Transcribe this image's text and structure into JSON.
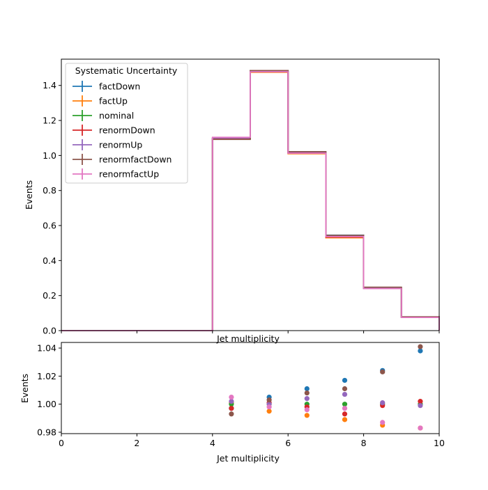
{
  "chart_data": [
    {
      "type": "line",
      "drawstyle": "steps",
      "xlabel": "Jet multiplicity",
      "ylabel": "Events",
      "xlim": [
        0,
        10
      ],
      "ylim": [
        0,
        1.55
      ],
      "xticks": [
        0,
        2,
        4,
        6,
        8,
        10
      ],
      "yticks": [
        "0.0",
        "0.2",
        "0.4",
        "0.6",
        "0.8",
        "1.0",
        "1.2",
        "1.4"
      ],
      "grid": false,
      "legend": {
        "title": "Systematic Uncertainty",
        "placement": "top-left"
      },
      "bin_edges": [
        0,
        1,
        2,
        3,
        4,
        5,
        6,
        7,
        8,
        9,
        10
      ],
      "series": [
        {
          "name": "factDown",
          "color": "#1f77b4",
          "values": [
            0,
            0,
            0,
            0,
            1.095,
            1.485,
            1.02,
            0.545,
            0.245,
            0.078
          ]
        },
        {
          "name": "factUp",
          "color": "#ff7f0e",
          "values": [
            0,
            0,
            0,
            0,
            1.1,
            1.475,
            1.01,
            0.53,
            0.24,
            0.075
          ]
        },
        {
          "name": "nominal",
          "color": "#2ca02c",
          "values": [
            0,
            0,
            0,
            0,
            1.098,
            1.48,
            1.017,
            0.538,
            0.243,
            0.076
          ]
        },
        {
          "name": "renormDown",
          "color": "#d62728",
          "values": [
            0,
            0,
            0,
            0,
            1.097,
            1.482,
            1.015,
            0.534,
            0.243,
            0.077
          ]
        },
        {
          "name": "renormUp",
          "color": "#9467bd",
          "values": [
            0,
            0,
            0,
            0,
            1.1,
            1.48,
            1.02,
            0.542,
            0.243,
            0.076
          ]
        },
        {
          "name": "renormfactDown",
          "color": "#8c564b",
          "values": [
            0,
            0,
            0,
            0,
            1.092,
            1.485,
            1.022,
            0.544,
            0.248,
            0.079
          ]
        },
        {
          "name": "renormfactUp",
          "color": "#e377c2",
          "values": [
            0,
            0,
            0,
            0,
            1.104,
            1.478,
            1.013,
            0.537,
            0.24,
            0.075
          ]
        }
      ]
    },
    {
      "type": "scatter",
      "xlabel": "Jet multiplicity",
      "ylabel": "Events",
      "xlim": [
        0,
        10
      ],
      "ylim": [
        0.979,
        1.044
      ],
      "xticks": [
        0,
        2,
        4,
        6,
        8,
        10
      ],
      "yticks": [
        "0.98",
        "1.00",
        "1.02",
        "1.04"
      ],
      "grid": false,
      "x": [
        4.5,
        5.5,
        6.5,
        7.5,
        8.5,
        9.5
      ],
      "series": [
        {
          "name": "factDown",
          "color": "#1f77b4",
          "values": [
            0.997,
            1.005,
            1.011,
            1.017,
            1.024,
            1.038
          ]
        },
        {
          "name": "factUp",
          "color": "#ff7f0e",
          "values": [
            1.001,
            0.995,
            0.992,
            0.989,
            0.985,
            0.983
          ]
        },
        {
          "name": "nominal",
          "color": "#2ca02c",
          "values": [
            1.0,
            1.0,
            1.0,
            1.0,
            1.0,
            1.0
          ]
        },
        {
          "name": "renormDown",
          "color": "#d62728",
          "values": [
            0.997,
            1.001,
            0.998,
            0.993,
            0.999,
            1.002
          ]
        },
        {
          "name": "renormUp",
          "color": "#9467bd",
          "values": [
            1.002,
            1.0,
            1.004,
            1.007,
            1.001,
            0.999
          ]
        },
        {
          "name": "renormfactDown",
          "color": "#8c564b",
          "values": [
            0.993,
            1.003,
            1.008,
            1.011,
            1.023,
            1.041
          ]
        },
        {
          "name": "renormfactUp",
          "color": "#e377c2",
          "values": [
            1.005,
            0.998,
            0.996,
            0.997,
            0.987,
            0.983
          ]
        }
      ]
    }
  ]
}
